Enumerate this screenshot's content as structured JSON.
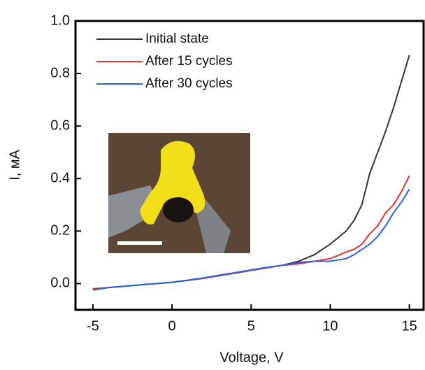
{
  "chart_data": {
    "type": "line",
    "x_label": "Voltage, V",
    "y_label": "I,  мА",
    "x": [
      -5,
      -4,
      -3,
      -2,
      -1,
      0,
      1,
      2,
      3,
      4,
      5,
      6,
      7,
      8,
      9,
      10,
      11,
      11.5,
      12,
      12.5,
      13,
      13.5,
      14,
      14.5,
      15
    ],
    "series": [
      {
        "name": "Initial state",
        "color": "#333333",
        "values": [
          -0.02,
          -0.015,
          -0.01,
          -0.005,
          0,
          0.005,
          0.012,
          0.02,
          0.03,
          0.04,
          0.05,
          0.06,
          0.07,
          0.085,
          0.11,
          0.15,
          0.2,
          0.24,
          0.3,
          0.42,
          0.5,
          0.58,
          0.67,
          0.77,
          0.87
        ]
      },
      {
        "name": "After 15 cycles",
        "color": "#e8302a",
        "values": [
          -0.02,
          -0.015,
          -0.01,
          -0.005,
          0,
          0.005,
          0.012,
          0.02,
          0.03,
          0.04,
          0.05,
          0.06,
          0.07,
          0.075,
          0.085,
          0.095,
          0.12,
          0.13,
          0.15,
          0.19,
          0.22,
          0.27,
          0.3,
          0.35,
          0.41
        ]
      },
      {
        "name": "After 30 cycles",
        "color": "#2a62e0",
        "values": [
          -0.025,
          -0.015,
          -0.01,
          -0.005,
          0,
          0.005,
          0.013,
          0.022,
          0.032,
          0.042,
          0.052,
          0.062,
          0.07,
          0.08,
          0.085,
          0.085,
          0.095,
          0.11,
          0.13,
          0.15,
          0.18,
          0.22,
          0.27,
          0.31,
          0.36
        ]
      }
    ],
    "xlim": [
      -6.1,
      15.9
    ],
    "ylim": [
      -0.1,
      1.0
    ],
    "xticks": [
      -5,
      0,
      5,
      10,
      15
    ],
    "yticks": [
      {
        "value": 0,
        "label": "0.0"
      },
      0.2,
      0.4,
      0.6,
      0.8,
      {
        "value": 1,
        "label": "1.0"
      }
    ],
    "legend": "upper left"
  }
}
